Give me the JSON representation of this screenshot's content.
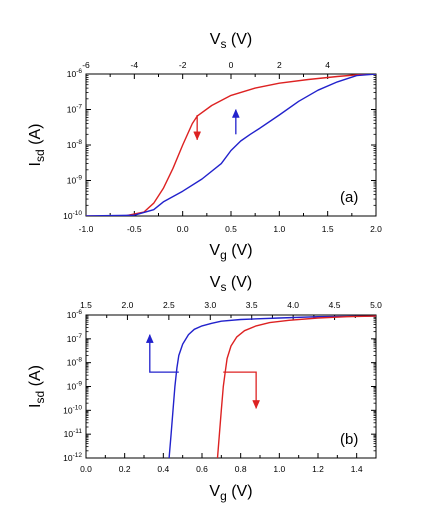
{
  "chart_data": [
    {
      "type": "line",
      "panel_label": "(a)",
      "xlabel_main": "V",
      "xlabel_sub": "g",
      "xlabel_unit": " (V)",
      "ylabel_main": "I",
      "ylabel_sub": "sd",
      "ylabel_unit": " (A)",
      "top_xlabel_main": "V",
      "top_xlabel_sub": "s",
      "top_xlabel_unit": " (V)",
      "xlim": [
        -1.0,
        2.0
      ],
      "xticks": [
        -1.0,
        -0.5,
        0.0,
        0.5,
        1.0,
        1.5,
        2.0
      ],
      "xtick_labels": [
        "-1.0",
        "-0.5",
        "0.0",
        "0.5",
        "1.0",
        "1.5",
        "2.0"
      ],
      "top_xlim": [
        -6,
        6
      ],
      "top_xticks": [
        -6,
        -4,
        -2,
        0,
        2,
        4
      ],
      "top_xtick_labels": [
        "-6",
        "-4",
        "-2",
        "0",
        "2",
        "4"
      ],
      "ylim_exp": [
        -10,
        -6
      ],
      "y_scale": "log",
      "ytick_exps": [
        -10,
        -9,
        -8,
        -7,
        -6
      ],
      "ytick_labels": [
        {
          "base": "10",
          "exp": "-10"
        },
        {
          "base": "10",
          "exp": "-9"
        },
        {
          "base": "10",
          "exp": "-8"
        },
        {
          "base": "10",
          "exp": "-7"
        },
        {
          "base": "10",
          "exp": "-6"
        }
      ],
      "series": [
        {
          "color": "#dd2222",
          "x": [
            -1.0,
            -0.6,
            -0.4,
            -0.3,
            -0.2,
            -0.1,
            0.0,
            0.1,
            0.15,
            0.3,
            0.5,
            0.75,
            1.0,
            1.3,
            1.6,
            1.9,
            2.0
          ],
          "y": [
            1e-10,
            1e-10,
            1.3e-10,
            2.3e-10,
            6e-10,
            2.2e-09,
            1e-08,
            4e-08,
            6.5e-08,
            1.3e-07,
            2.5e-07,
            4e-07,
            5.5e-07,
            7e-07,
            8.5e-07,
            1e-06,
            1e-06
          ]
        },
        {
          "color": "#2222cc",
          "x": [
            -1.0,
            -0.5,
            -0.3,
            -0.2,
            0.0,
            0.2,
            0.4,
            0.5,
            0.6,
            0.7,
            0.8,
            1.0,
            1.2,
            1.4,
            1.6,
            1.8,
            2.0
          ],
          "y": [
            1e-10,
            1.05e-10,
            1.5e-10,
            2.5e-10,
            5e-10,
            1.1e-09,
            3e-09,
            7e-09,
            1.3e-08,
            2e-08,
            3e-08,
            7e-08,
            1.7e-07,
            3.5e-07,
            6e-07,
            9e-07,
            1e-06
          ]
        }
      ],
      "arrows": [
        {
          "color": "#dd2222",
          "x": 0.15,
          "y_from": 7e-08,
          "y_to": 1.4e-08,
          "direction": "down"
        },
        {
          "color": "#2222cc",
          "x": 0.55,
          "y_from": 2e-08,
          "y_to": 1e-07,
          "direction": "up"
        }
      ]
    },
    {
      "type": "line",
      "panel_label": "(b)",
      "xlabel_main": "V",
      "xlabel_sub": "g",
      "xlabel_unit": " (V)",
      "ylabel_main": "I",
      "ylabel_sub": "sd",
      "ylabel_unit": " (A)",
      "top_xlabel_main": "V",
      "top_xlabel_sub": "s",
      "top_xlabel_unit": " (V)",
      "xlim": [
        0.0,
        1.5
      ],
      "xticks": [
        0.0,
        0.2,
        0.4,
        0.6,
        0.8,
        1.0,
        1.2,
        1.4
      ],
      "xtick_labels": [
        "0.0",
        "0.2",
        "0.4",
        "0.6",
        "0.8",
        "1.0",
        "1.2",
        "1.4"
      ],
      "top_xlim": [
        1.5,
        5.0
      ],
      "top_xticks": [
        1.5,
        2.0,
        2.5,
        3.0,
        3.5,
        4.0,
        4.5,
        5.0
      ],
      "top_xtick_labels": [
        "1.5",
        "2.0",
        "2.5",
        "3.0",
        "3.5",
        "4.0",
        "4.5",
        "5.0"
      ],
      "ylim_exp": [
        -12,
        -6
      ],
      "y_scale": "log",
      "ytick_exps": [
        -12,
        -11,
        -10,
        -9,
        -8,
        -7,
        -6
      ],
      "ytick_labels": [
        {
          "base": "10",
          "exp": "-12"
        },
        {
          "base": "10",
          "exp": "-11"
        },
        {
          "base": "10",
          "exp": "-10"
        },
        {
          "base": "10",
          "exp": "-9"
        },
        {
          "base": "10",
          "exp": "-8"
        },
        {
          "base": "10",
          "exp": "-7"
        },
        {
          "base": "10",
          "exp": "-6"
        }
      ],
      "series": [
        {
          "color": "#2222cc",
          "x": [
            0.43,
            0.44,
            0.45,
            0.46,
            0.47,
            0.48,
            0.5,
            0.53,
            0.56,
            0.6,
            0.65,
            0.7,
            0.8,
            1.0,
            1.2,
            1.5
          ],
          "y": [
            1e-12,
            1e-11,
            1e-10,
            1e-09,
            6e-09,
            2e-08,
            6e-08,
            1.5e-07,
            2.5e-07,
            3.5e-07,
            4.5e-07,
            5.5e-07,
            6.5e-07,
            7.5e-07,
            8.5e-07,
            9e-07
          ]
        },
        {
          "color": "#dd2222",
          "x": [
            0.68,
            0.69,
            0.7,
            0.71,
            0.72,
            0.73,
            0.75,
            0.78,
            0.82,
            0.88,
            0.95,
            1.05,
            1.2,
            1.35,
            1.5
          ],
          "y": [
            1e-12,
            1e-11,
            1e-10,
            1e-09,
            4e-09,
            1.5e-08,
            5e-08,
            1.2e-07,
            2.2e-07,
            3.5e-07,
            4.8e-07,
            6e-07,
            7.5e-07,
            8.5e-07,
            9e-07
          ]
        }
      ],
      "arrows": [
        {
          "color": "#2222cc",
          "x_from": 0.48,
          "x_to": 0.33,
          "y": 4e-09,
          "y_to": 1.5e-07,
          "direction": "up"
        },
        {
          "color": "#dd2222",
          "x_from": 0.71,
          "x_to": 0.88,
          "y": 4e-09,
          "y_to": 1.2e-10,
          "direction": "down"
        }
      ]
    }
  ]
}
